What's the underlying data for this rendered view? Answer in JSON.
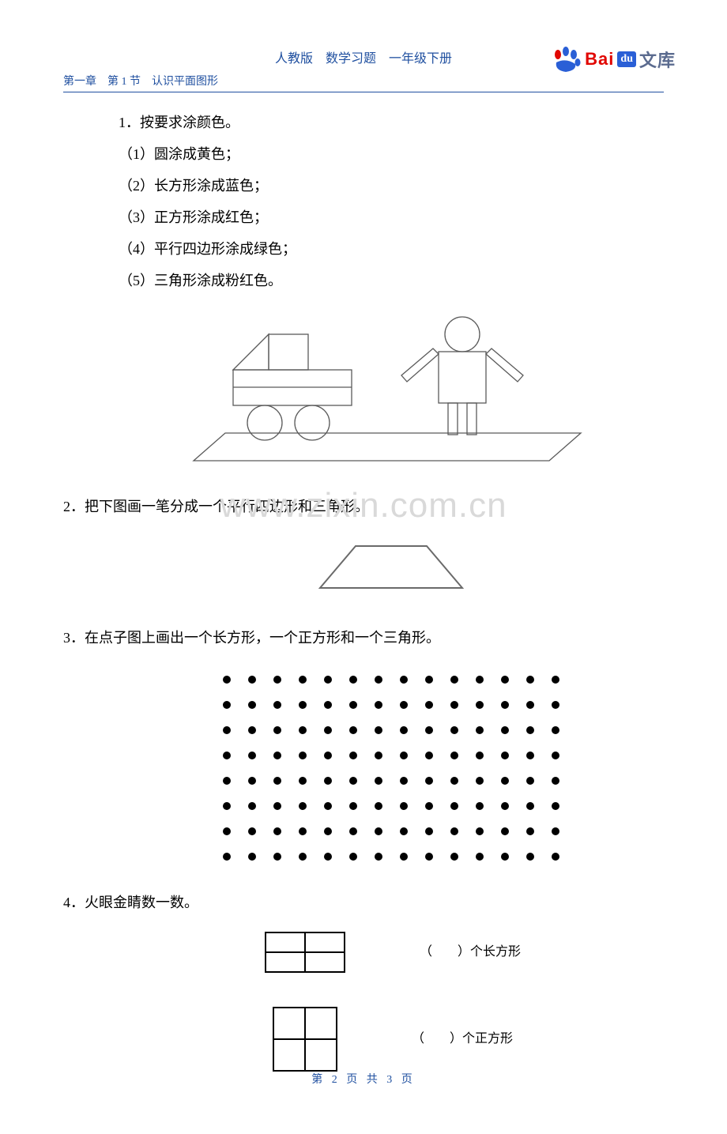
{
  "header": {
    "title": "人教版　数学习题　一年级下册",
    "breadcrumb": "第一章　第 1 节　认识平面图形"
  },
  "logo": {
    "brand_bai": "Bai",
    "brand_wenku": "文库",
    "color_red": "#e10601",
    "color_blue": "#2a5fd6",
    "color_text": "#5b6b8f"
  },
  "watermark": "www.zixin.com.cn",
  "q1": {
    "stem": "1．按要求涂颜色。",
    "items": [
      "（1）圆涂成黄色；",
      "（2）长方形涂成蓝色；",
      "（3）正方形涂成红色；",
      "（4）平行四边形涂成绿色；",
      "（5）三角形涂成粉红色。"
    ]
  },
  "q2": {
    "stem": "2．把下图画一笔分成一个平行四边形和三角形。"
  },
  "q3": {
    "stem": "3．在点子图上画出一个长方形，一个正方形和一个三角形。",
    "dot_grid": {
      "rows": 8,
      "cols": 14,
      "dot_r": 5,
      "gap": 32,
      "dot_color": "#000000"
    }
  },
  "q4": {
    "stem": "4．火眼金睛数一数。",
    "items": [
      {
        "blank_prefix": "（",
        "blank_suffix": "）",
        "label": "个长方形"
      },
      {
        "blank_prefix": "（",
        "blank_suffix": "）",
        "label": "个正方形"
      }
    ]
  },
  "footer": "第 2 页 共 3 页",
  "colors": {
    "accent": "#2050a0",
    "text": "#000000",
    "stroke": "#5a5a5a",
    "watermark": "#d9d9d9"
  }
}
